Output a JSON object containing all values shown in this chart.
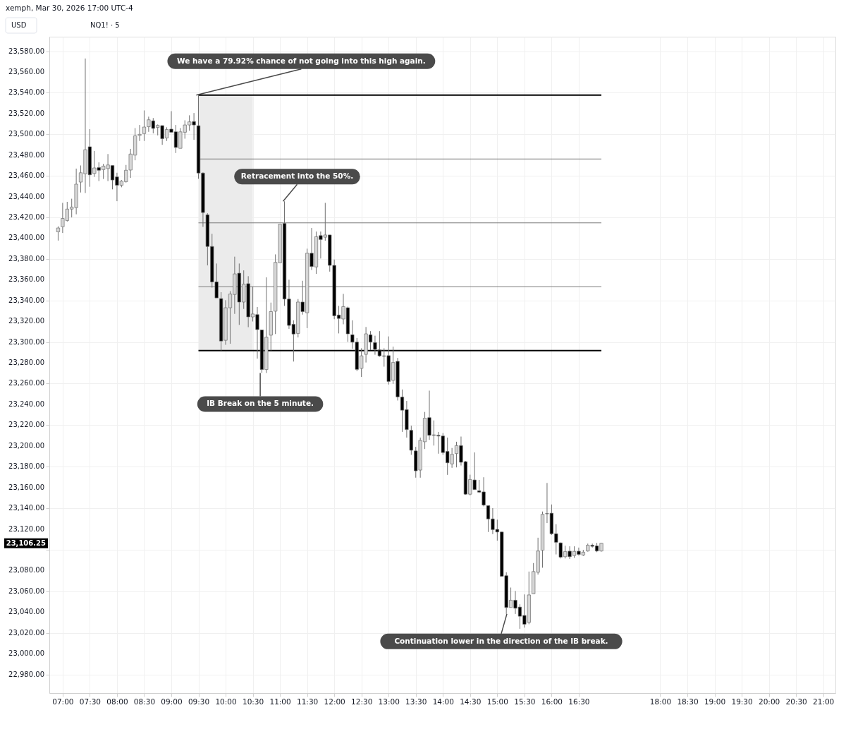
{
  "chart_data": {
    "type": "candlestick",
    "title": "xemph, Mar 30, 2026 17:00 UTC-4",
    "subtitle": "NQ1! · 5",
    "x": [
      6.9167,
      7,
      7.0833,
      7.1667,
      7.25,
      7.3333,
      7.4167,
      7.5,
      7.5833,
      7.6667,
      7.75,
      7.8333,
      7.9167,
      8,
      8.0833,
      8.1667,
      8.25,
      8.3333,
      8.4167,
      8.5,
      8.5833,
      8.6667,
      8.75,
      8.8333,
      8.9167,
      9,
      9.0833,
      9.1667,
      9.25,
      9.3333,
      9.4167,
      9.5,
      9.5833,
      9.6667,
      9.75,
      9.8333,
      9.9167,
      10,
      10.0833,
      10.1667,
      10.25,
      10.3333,
      10.4167,
      10.5,
      10.5833,
      10.6667,
      10.75,
      10.8333,
      10.9167,
      11,
      11.0833,
      11.1667,
      11.25,
      11.3333,
      11.4167,
      11.5,
      11.5833,
      11.6667,
      11.75,
      11.8333,
      11.9167,
      12,
      12.0833,
      12.1667,
      12.25,
      12.3333,
      12.4167,
      12.5,
      12.5833,
      12.6667,
      12.75,
      12.8333,
      12.9167,
      13,
      13.0833,
      13.1667,
      13.25,
      13.3333,
      13.4167,
      13.5,
      13.5833,
      13.6667,
      13.75,
      13.8333,
      13.9167,
      14,
      14.0833,
      14.1667,
      14.25,
      14.3333,
      14.4167,
      14.5,
      14.5833,
      14.6667,
      14.75,
      14.8333,
      14.9167,
      15,
      15.0833,
      15.1667,
      15.25,
      15.3333,
      15.4167,
      15.5,
      15.5833,
      15.6667,
      15.75,
      15.8333,
      15.9167,
      16,
      16.0833,
      16.1667,
      16.25,
      16.3333,
      16.4167,
      16.5,
      16.5833,
      16.6667,
      16.75,
      16.8333,
      16.9167
    ],
    "ohlc": [
      [
        23406.1,
        23411.4,
        23397.7,
        23409.8
      ],
      [
        23411,
        23434,
        23405,
        23419
      ],
      [
        23417,
        23435,
        23416,
        23428
      ],
      [
        23428,
        23438,
        23420,
        23430
      ],
      [
        23429.4,
        23467,
        23423,
        23452
      ],
      [
        23454,
        23470,
        23444,
        23463
      ],
      [
        23462,
        23573,
        23443.5,
        23485.2
      ],
      [
        23488,
        23505,
        23449.5,
        23461
      ],
      [
        23462.3,
        23484,
        23459,
        23467.6
      ],
      [
        23468,
        23473,
        23455,
        23465.4
      ],
      [
        23466,
        23471.6,
        23457,
        23469.4
      ],
      [
        23467,
        23481,
        23455,
        23470.5
      ],
      [
        23470,
        23470,
        23447,
        23456
      ],
      [
        23459,
        23463,
        23435.6,
        23451
      ],
      [
        23451,
        23456,
        23449,
        23455
      ],
      [
        23454.4,
        23470.5,
        23453.5,
        23465.4
      ],
      [
        23465.6,
        23486,
        23458,
        23481
      ],
      [
        23480,
        23506,
        23475,
        23498.5
      ],
      [
        23499,
        23509,
        23493.6,
        23500
      ],
      [
        23500.7,
        23523,
        23493.6,
        23507
      ],
      [
        23507.3,
        23517,
        23502.4,
        23514
      ],
      [
        23513,
        23515.7,
        23500.9,
        23505.7
      ],
      [
        23506.6,
        23509.5,
        23499,
        23508.6
      ],
      [
        23508.4,
        23508.4,
        23489.9,
        23495.8
      ],
      [
        23496.5,
        23506.8,
        23493.6,
        23504.6
      ],
      [
        23505,
        23522.3,
        23502,
        23502
      ],
      [
        23502.4,
        23509,
        23482,
        23487.4
      ],
      [
        23486.5,
        23506,
        23486.5,
        23502.4
      ],
      [
        23502,
        23513.5,
        23495.8,
        23509
      ],
      [
        23509,
        23518.3,
        23503.5,
        23512
      ],
      [
        23512.3,
        23520.5,
        23494.7,
        23509
      ],
      [
        23508.3,
        23537.75,
        23457.2,
        23462.7
      ],
      [
        23462.7,
        23463.3,
        23410.9,
        23424.7
      ],
      [
        23422.5,
        23424,
        23373.8,
        23392
      ],
      [
        23392,
        23404.2,
        23352.4,
        23357.9
      ],
      [
        23357.9,
        23375.6,
        23342.5,
        23342.5
      ],
      [
        23341.8,
        23348,
        23291.75,
        23301
      ],
      [
        23301.7,
        23340.3,
        23297.3,
        23333
      ],
      [
        23333,
        23349,
        23298.4,
        23346.2
      ],
      [
        23345.8,
        23382.2,
        23327.1,
        23365.6
      ],
      [
        23366.3,
        23375.6,
        23316.5,
        23338.5
      ],
      [
        23338.5,
        23369,
        23331.9,
        23355.7
      ],
      [
        23356.2,
        23363.4,
        23314.3,
        23324.2
      ],
      [
        23324.2,
        23353.5,
        23319.8,
        23327
      ],
      [
        23326.4,
        23333.7,
        23284,
        23312
      ],
      [
        23311.6,
        23311.6,
        23270.2,
        23273.5
      ],
      [
        23273.5,
        23362.3,
        23270.2,
        23304.6
      ],
      [
        23306.6,
        23338,
        23291.8,
        23329.3
      ],
      [
        23329.7,
        23384.4,
        23307.7,
        23376.7
      ],
      [
        23376.2,
        23413.5,
        23376.2,
        23413.5
      ],
      [
        23414.2,
        23435.5,
        23334.8,
        23341.4
      ],
      [
        23341.4,
        23360,
        23312.7,
        23316
      ],
      [
        23317.1,
        23320.9,
        23281.2,
        23307.7
      ],
      [
        23308.3,
        23341.4,
        23304.4,
        23338.5
      ],
      [
        23338.5,
        23359,
        23326.4,
        23329.3
      ],
      [
        23328.2,
        23389.9,
        23313.4,
        23385.5
      ],
      [
        23385.5,
        23409.8,
        23369.4,
        23372.7
      ],
      [
        23372.3,
        23406.4,
        23365.6,
        23401.4
      ],
      [
        23402.5,
        23406.4,
        23380.4,
        23398.7
      ],
      [
        23400.9,
        23434,
        23397.6,
        23403.1
      ],
      [
        23403.1,
        23403.1,
        23367.8,
        23373.8
      ],
      [
        23373.8,
        23379.5,
        23322,
        23325.3
      ],
      [
        23326,
        23334.8,
        23308.3,
        23322.7
      ],
      [
        23322.2,
        23346.4,
        23317.1,
        23334.1
      ],
      [
        23333,
        23334.1,
        23300.1,
        23307.9
      ],
      [
        23307,
        23320.9,
        23293.5,
        23299.9
      ],
      [
        23299.9,
        23303.9,
        23271.9,
        23273.7
      ],
      [
        23274.6,
        23294,
        23266.4,
        23286.7
      ],
      [
        23288.1,
        23314.5,
        23280.3,
        23307.9
      ],
      [
        23307,
        23310.5,
        23292.2,
        23299.9
      ],
      [
        23299.5,
        23306.1,
        23287.8,
        23292.9
      ],
      [
        23292.4,
        23310.5,
        23285.8,
        23286.7
      ],
      [
        23286.7,
        23294,
        23276.3,
        23286.3
      ],
      [
        23286.9,
        23305.4,
        23259.1,
        23262
      ],
      [
        23263.1,
        23295.5,
        23259.8,
        23280.3
      ],
      [
        23281.4,
        23284.7,
        23243.7,
        23247.2
      ],
      [
        23247,
        23254.3,
        23213.5,
        23234.4
      ],
      [
        23234.9,
        23243.3,
        23208,
        23215.7
      ],
      [
        23215,
        23219.4,
        23191.4,
        23195.8
      ],
      [
        23195.2,
        23199.1,
        23169.4,
        23176
      ],
      [
        23176.7,
        23208,
        23169.4,
        23205.3
      ],
      [
        23204,
        23232.7,
        23197,
        23226.7
      ],
      [
        23227.2,
        23253.2,
        23205.8,
        23210.2
      ],
      [
        23210.6,
        23224.5,
        23200.3,
        23210.2
      ],
      [
        23210.2,
        23213.5,
        23192.5,
        23209.5
      ],
      [
        23209.5,
        23212.4,
        23191.4,
        23193.6
      ],
      [
        23194.7,
        23208,
        23172.1,
        23183.7
      ],
      [
        23182.6,
        23198,
        23178.9,
        23191.9
      ],
      [
        23192.6,
        23204,
        23179.3,
        23200.3
      ],
      [
        23200.3,
        23209,
        23181.1,
        23184.2
      ],
      [
        23184.8,
        23185.5,
        23152.9,
        23153.5
      ],
      [
        23153.5,
        23172.3,
        23152.4,
        23167.6
      ],
      [
        23167.2,
        23193.7,
        23157.9,
        23157.9
      ],
      [
        23156.8,
        23167.2,
        23154.6,
        23155.5
      ],
      [
        23155.7,
        23169.8,
        23141.8,
        23143
      ],
      [
        23142.5,
        23142.5,
        23117.1,
        23129.7
      ],
      [
        23129.7,
        23140.1,
        23115,
        23119.4
      ],
      [
        23119.6,
        23129,
        23108.8,
        23117.1
      ],
      [
        23117.1,
        23117.1,
        23074.4,
        23074.4
      ],
      [
        23075,
        23078.3,
        23038.2,
        23044.4
      ],
      [
        23044.4,
        23063.6,
        23044.4,
        23051.4
      ],
      [
        23051.4,
        23060.3,
        23038.2,
        23043.7
      ],
      [
        23044.8,
        23047.5,
        23023.9,
        23036
      ],
      [
        23036.7,
        23057,
        23025,
        23028.3
      ],
      [
        23030,
        23079,
        23028.3,
        23056.5
      ],
      [
        23057.6,
        23087.2,
        23057.6,
        23079
      ],
      [
        23078.3,
        23111.6,
        23076.1,
        23098.8
      ],
      [
        23099.5,
        23136.8,
        23082.7,
        23134.1
      ],
      [
        23134.8,
        23164.3,
        23125.7,
        23134.6
      ],
      [
        23135.2,
        23143.6,
        23114.3,
        23115.4
      ],
      [
        23115.4,
        23124.6,
        23095.5,
        23107.2
      ],
      [
        23106.6,
        23107,
        23091.6,
        23092.9
      ],
      [
        23093.3,
        23103.9,
        23091.6,
        23098.2
      ],
      [
        23098.6,
        23103.3,
        23091.1,
        23093.3
      ],
      [
        23094.4,
        23103.3,
        23092.2,
        23098.4
      ],
      [
        23098.6,
        23102.1,
        23094.4,
        23095.5
      ],
      [
        23094.9,
        23099.9,
        23094,
        23097.7
      ],
      [
        23098.8,
        23105.9,
        23098.2,
        23104.4
      ],
      [
        23104.4,
        23105.9,
        23102.1,
        23103.3
      ],
      [
        23103.7,
        23106.6,
        23097.7,
        23098.8
      ],
      [
        23098.8,
        23106.6,
        23098.2,
        23106.25
      ]
    ],
    "xlim": [
      6.82,
      21.16
    ],
    "xticks": [
      {
        "value": 7,
        "label": "07:00"
      },
      {
        "value": 7.5,
        "label": "07:30"
      },
      {
        "value": 8,
        "label": "08:00"
      },
      {
        "value": 8.5,
        "label": "08:30"
      },
      {
        "value": 9,
        "label": "09:00"
      },
      {
        "value": 9.5,
        "label": "09:30"
      },
      {
        "value": 10,
        "label": "10:00"
      },
      {
        "value": 10.5,
        "label": "10:30"
      },
      {
        "value": 11,
        "label": "11:00"
      },
      {
        "value": 11.5,
        "label": "11:30"
      },
      {
        "value": 12,
        "label": "12:00"
      },
      {
        "value": 12.5,
        "label": "12:30"
      },
      {
        "value": 13,
        "label": "13:00"
      },
      {
        "value": 13.5,
        "label": "13:30"
      },
      {
        "value": 14,
        "label": "14:00"
      },
      {
        "value": 14.5,
        "label": "14:30"
      },
      {
        "value": 15,
        "label": "15:00"
      },
      {
        "value": 15.5,
        "label": "15:30"
      },
      {
        "value": 16,
        "label": "16:00"
      },
      {
        "value": 16.5,
        "label": "16:30"
      },
      {
        "value": 18,
        "label": "18:00"
      },
      {
        "value": 18.5,
        "label": "18:30"
      },
      {
        "value": 19,
        "label": "19:00"
      },
      {
        "value": 19.5,
        "label": "19:30"
      },
      {
        "value": 20,
        "label": "20:00"
      },
      {
        "value": 20.5,
        "label": "20:30"
      },
      {
        "value": 21,
        "label": "21:00"
      }
    ],
    "ylim": [
      22962,
      23594
    ],
    "yticks": [
      {
        "value": 22980,
        "label": "22,980.00"
      },
      {
        "value": 23000,
        "label": "23,000.00"
      },
      {
        "value": 23020,
        "label": "23,020.00"
      },
      {
        "value": 23040,
        "label": "23,040.00"
      },
      {
        "value": 23060,
        "label": "23,060.00"
      },
      {
        "value": 23080,
        "label": "23,080.00"
      },
      {
        "value": 23100,
        "label": null
      },
      {
        "value": 23120,
        "label": "23,120.00"
      },
      {
        "value": 23140,
        "label": "23,140.00"
      },
      {
        "value": 23160,
        "label": "23,160.00"
      },
      {
        "value": 23180,
        "label": "23,180.00"
      },
      {
        "value": 23200,
        "label": "23,200.00"
      },
      {
        "value": 23220,
        "label": "23,220.00"
      },
      {
        "value": 23240,
        "label": "23,240.00"
      },
      {
        "value": 23260,
        "label": "23,260.00"
      },
      {
        "value": 23280,
        "label": "23,280.00"
      },
      {
        "value": 23300,
        "label": "23,300.00"
      },
      {
        "value": 23320,
        "label": "23,320.00"
      },
      {
        "value": 23340,
        "label": "23,340.00"
      },
      {
        "value": 23360,
        "label": "23,360.00"
      },
      {
        "value": 23380,
        "label": "23,380.00"
      },
      {
        "value": 23400,
        "label": "23,400.00"
      },
      {
        "value": 23420,
        "label": "23,420.00"
      },
      {
        "value": 23440,
        "label": "23,440.00"
      },
      {
        "value": 23460,
        "label": "23,460.00"
      },
      {
        "value": 23480,
        "label": "23,480.00"
      },
      {
        "value": 23500,
        "label": "23,500.00"
      },
      {
        "value": 23520,
        "label": "23,520.00"
      },
      {
        "value": 23540,
        "label": "23,540.00"
      },
      {
        "value": 23560,
        "label": "23,560.00"
      },
      {
        "value": 23580,
        "label": "23,580.00"
      }
    ],
    "grid": true,
    "legend": false,
    "line_style": "solid",
    "bands": [
      {
        "axis": "x",
        "from": 9.5,
        "to": 10.5,
        "color": "#ebebeb"
      }
    ],
    "ref_lines": [
      {
        "axis": "y",
        "value": 23537.75,
        "color": "#000000"
      },
      {
        "axis": "y",
        "value": 23476.25,
        "color": "#787878"
      },
      {
        "axis": "y",
        "value": 23414.75,
        "color": "#787878"
      },
      {
        "axis": "y",
        "value": 23353.25,
        "color": "#787878"
      },
      {
        "axis": "y",
        "value": 23291.75,
        "color": "#000000"
      }
    ],
    "annotations": [
      "USD",
      "23,106.25",
      {
        "text": "We have a 79.92% chance of not going into this high again.",
        "x": 9.5,
        "y": 23537.75
      },
      {
        "text": "Retracement into the 50%.",
        "x": 11.0833,
        "y": 23435.5
      },
      {
        "text": "IB Break on the 5 minute.",
        "x": 10.6667,
        "y": 23270.2
      },
      {
        "text": "Continuation lower in the direction of the IB break.",
        "x": 15.1667,
        "y": 23038.2
      }
    ]
  }
}
